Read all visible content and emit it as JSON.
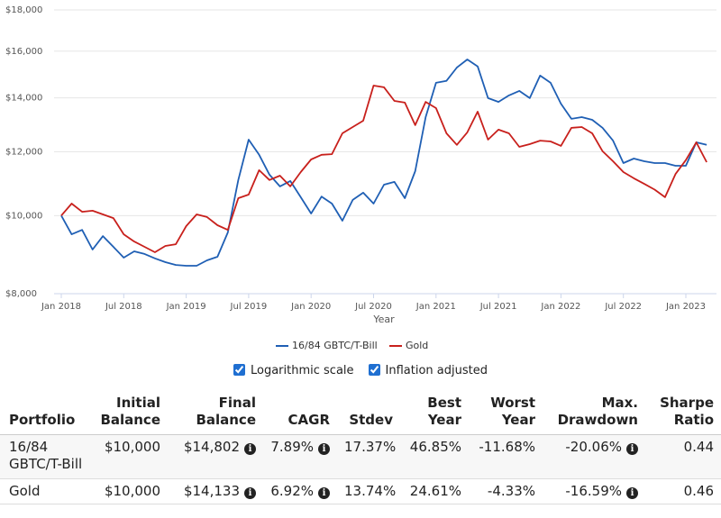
{
  "chart_data": {
    "type": "line",
    "x_label": "Year",
    "categories": [
      "Jan 2018",
      null,
      null,
      null,
      null,
      null,
      "Jul 2018",
      null,
      null,
      null,
      null,
      null,
      "Jan 2019",
      null,
      null,
      null,
      null,
      null,
      "Jul 2019",
      null,
      null,
      null,
      null,
      null,
      "Jan 2020",
      null,
      null,
      null,
      null,
      null,
      "Jul 2020",
      null,
      null,
      null,
      null,
      null,
      "Jan 2021",
      null,
      null,
      null,
      null,
      null,
      "Jul 2021",
      null,
      null,
      null,
      null,
      null,
      "Jan 2022",
      null,
      null,
      null,
      null,
      null,
      "Jul 2022",
      null,
      null,
      null,
      null,
      null,
      "Jan 2023",
      null,
      null
    ],
    "series": [
      {
        "name": "16/84 GBTC/T-Bill",
        "color": "#1f5fb4",
        "values": [
          10000,
          9480,
          9600,
          9075,
          9430,
          9145,
          8867,
          9030,
          8962,
          8850,
          8755,
          8685,
          8665,
          8665,
          8800,
          8890,
          9530,
          11070,
          12425,
          11900,
          11240,
          10870,
          11040,
          10540,
          10060,
          10560,
          10350,
          9855,
          10460,
          10675,
          10350,
          10925,
          11010,
          10510,
          11355,
          13250,
          14615,
          14700,
          15265,
          15625,
          15315,
          13990,
          13840,
          14100,
          14280,
          13990,
          14920,
          14615,
          13770,
          13185,
          13250,
          13150,
          12850,
          12390,
          11620,
          11770,
          11680,
          11620,
          11620,
          11530,
          11530,
          12330,
          12240
        ]
      },
      {
        "name": "Gold",
        "color": "#c8201c",
        "values": [
          10000,
          10350,
          10110,
          10140,
          10035,
          9930,
          9480,
          9285,
          9145,
          9005,
          9170,
          9215,
          9705,
          10035,
          9960,
          9730,
          9600,
          10510,
          10620,
          11385,
          11070,
          11210,
          10870,
          11325,
          11740,
          11900,
          11920,
          12650,
          12880,
          13115,
          14500,
          14430,
          13880,
          13810,
          12950,
          13840,
          13595,
          12650,
          12240,
          12685,
          13460,
          12425,
          12785,
          12650,
          12170,
          12265,
          12390,
          12360,
          12205,
          12850,
          12880,
          12650,
          12020,
          11680,
          11325,
          11125,
          10950,
          10770,
          10540,
          11260,
          11720,
          12330,
          11650
        ]
      }
    ],
    "ylim": [
      8000,
      18000
    ],
    "yticks": [
      {
        "value": 8000,
        "label": "$8,000"
      },
      {
        "value": 10000,
        "label": "$10,000"
      },
      {
        "value": 12000,
        "label": "$12,000"
      },
      {
        "value": 14000,
        "label": "$14,000"
      },
      {
        "value": 16000,
        "label": "$16,000"
      },
      {
        "value": 18000,
        "label": "$18,000"
      }
    ],
    "log_scale": true,
    "grid": true,
    "legend": "bottom"
  },
  "controls": [
    {
      "label": "Logarithmic scale",
      "checked": true
    },
    {
      "label": "Inflation adjusted",
      "checked": true
    }
  ],
  "table": {
    "header": [
      "Portfolio",
      "Initial Balance",
      "Final Balance",
      "CAGR",
      "Stdev",
      "Best Year",
      "Worst Year",
      "Max. Drawdown",
      "Sharpe Ratio"
    ],
    "rows": [
      [
        "16/84 GBTC/T-Bill",
        "$10,000",
        "$14,802",
        "7.89%",
        "17.37%",
        "46.85%",
        "-11.68%",
        "-20.06%",
        "0.44"
      ],
      [
        "Gold",
        "$10,000",
        "$14,133",
        "6.92%",
        "13.74%",
        "24.61%",
        "-4.33%",
        "-16.59%",
        "0.46"
      ]
    ]
  }
}
